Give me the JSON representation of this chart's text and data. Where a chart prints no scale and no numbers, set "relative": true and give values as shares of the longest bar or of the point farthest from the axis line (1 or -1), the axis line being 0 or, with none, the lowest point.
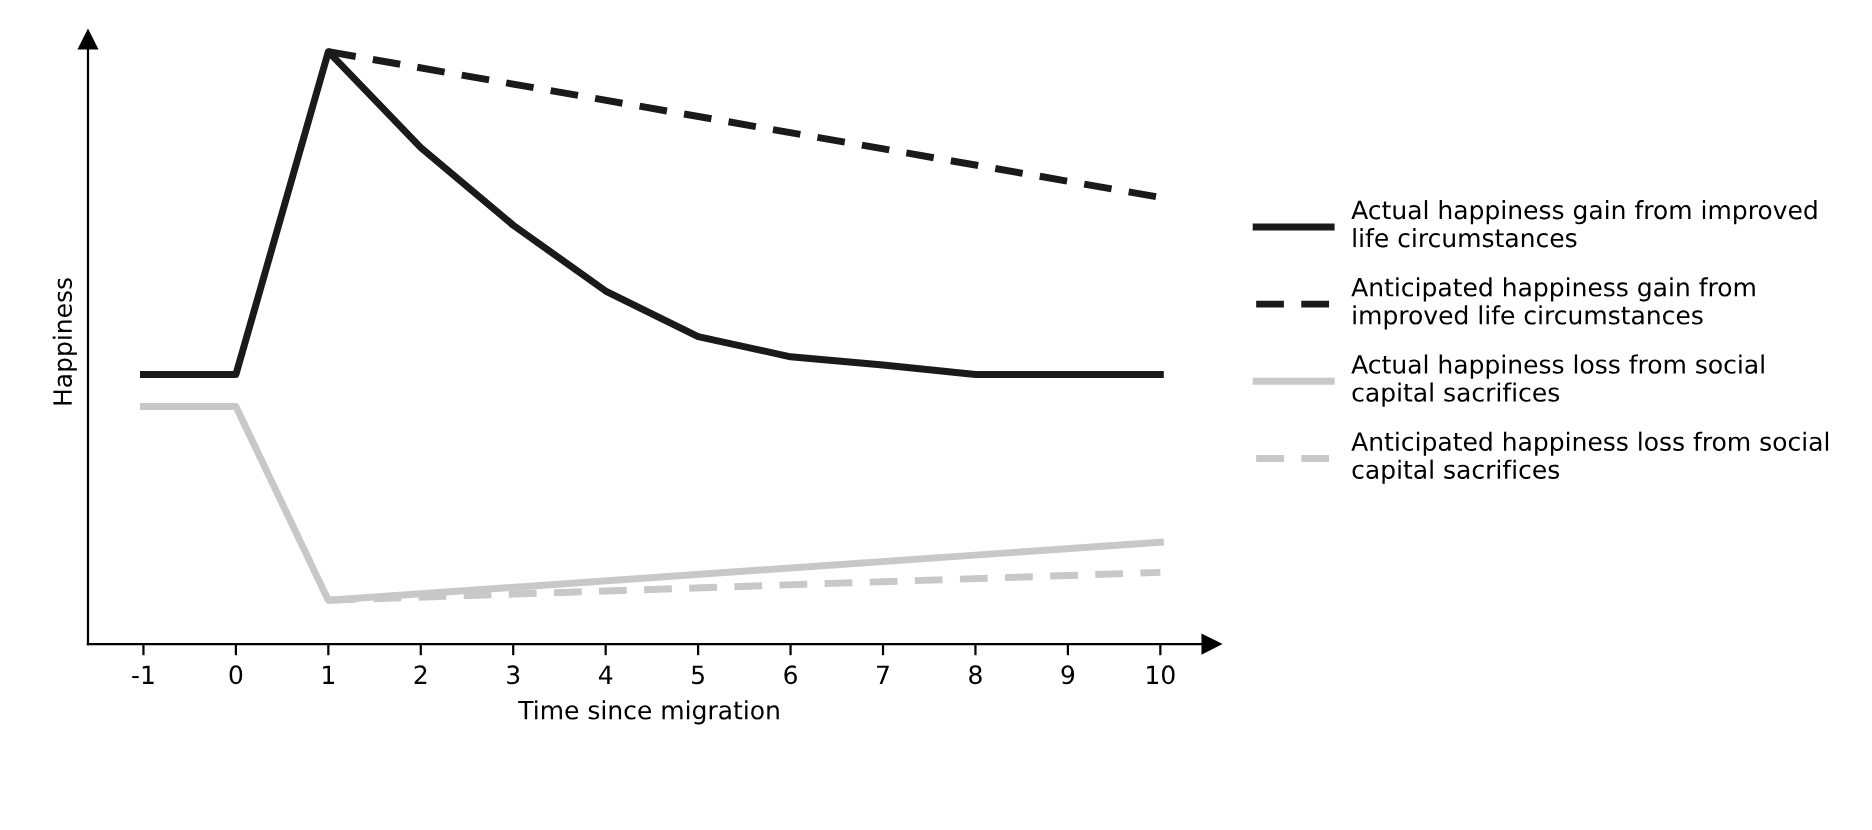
{
  "chart_data": {
    "type": "line",
    "relative": true,
    "xlabel": "Time since migration",
    "ylabel": "Happiness",
    "x": [
      -1,
      0,
      1,
      2,
      3,
      4,
      5,
      6,
      7,
      8,
      9,
      10
    ],
    "xlim": [
      -1.6,
      10.55
    ],
    "xticks": [
      -1,
      0,
      1,
      2,
      3,
      4,
      5,
      6,
      7,
      8,
      9,
      10
    ],
    "tick_labels": "x",
    "grid": false,
    "legend": "right",
    "marker": "none",
    "series": [
      {
        "name": "Actual happiness gain from improved\nlife circumstances",
        "color": "#1a1a1a",
        "line_style": "solid",
        "values": [
          0.455,
          0.455,
          1.0,
          0.838,
          0.707,
          0.596,
          0.519,
          0.485,
          0.471,
          0.455,
          0.455,
          0.455
        ]
      },
      {
        "name": "Anticipated happiness gain from\nimproved life circumstances",
        "color": "#1a1a1a",
        "line_style": "dashed",
        "x": [
          1,
          10
        ],
        "values": [
          1.0,
          0.754
        ]
      },
      {
        "name": "Actual happiness loss from social\ncapital sacrifices",
        "color": "#c8c8c8",
        "line_style": "solid",
        "x": [
          -1,
          0,
          1,
          10
        ],
        "values": [
          0.401,
          0.401,
          0.074,
          0.172
        ]
      },
      {
        "name": "Anticipated happiness loss from social\ncapital sacrifices",
        "color": "#c8c8c8",
        "line_style": "dashed",
        "x": [
          1,
          10
        ],
        "values": [
          0.074,
          0.121
        ]
      }
    ]
  }
}
